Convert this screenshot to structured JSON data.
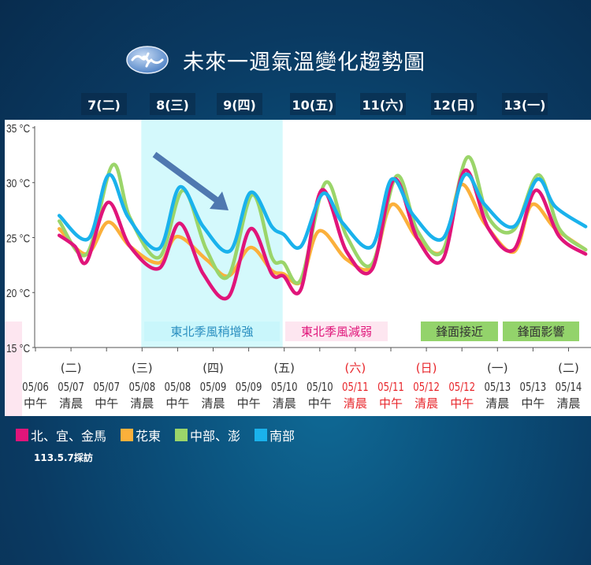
{
  "title": "未來一週氣溫變化趨勢圖",
  "logo_icon": "cwa-logo-icon",
  "days": [
    "7(二)",
    "8(三)",
    "9(四)",
    "10(五)",
    "11(六)",
    "12(日)",
    "13(一)"
  ],
  "annotations": [
    {
      "text": "東北季風稍增強",
      "bg": "#c9f6fb",
      "color": "#2a8fc0"
    },
    {
      "text": "東北季風減弱",
      "bg": "#fde6f0",
      "color": "#e0157a"
    },
    {
      "text": "鋒面接近",
      "bg": "#93d36b",
      "color": "#333333"
    },
    {
      "text": "鋒面影響",
      "bg": "#93d36b",
      "color": "#333333"
    }
  ],
  "legend": [
    {
      "label": "北、宜、金馬",
      "color": "#e0157a"
    },
    {
      "label": "花東",
      "color": "#fbb03b"
    },
    {
      "label": "中部、澎",
      "color": "#9bd56a"
    },
    {
      "label": "南部",
      "color": "#1ab2ec"
    }
  ],
  "note": "113.5.7採訪",
  "chart_data": {
    "type": "line",
    "title": "未來一週氣溫變化趨勢圖",
    "ylim": [
      15,
      35
    ],
    "yticks": [
      "35 °C",
      "30 °C",
      "25 °C",
      "20 °C",
      "15 °C"
    ],
    "ytick_values": [
      35,
      30,
      25,
      20,
      15
    ],
    "categories": [
      {
        "wd": "",
        "date": "05/06",
        "time": "中午",
        "red": false
      },
      {
        "wd": "(二)",
        "date": "05/07",
        "time": "清晨",
        "red": false
      },
      {
        "wd": "",
        "date": "05/07",
        "time": "中午",
        "red": false
      },
      {
        "wd": "(三)",
        "date": "05/08",
        "time": "清晨",
        "red": false
      },
      {
        "wd": "",
        "date": "05/08",
        "time": "中午",
        "red": false
      },
      {
        "wd": "(四)",
        "date": "05/09",
        "time": "清晨",
        "red": false
      },
      {
        "wd": "",
        "date": "05/09",
        "time": "中午",
        "red": false
      },
      {
        "wd": "(五)",
        "date": "05/10",
        "time": "清晨",
        "red": false
      },
      {
        "wd": "",
        "date": "05/10",
        "time": "中午",
        "red": false
      },
      {
        "wd": "(六)",
        "date": "05/11",
        "time": "清晨",
        "red": true
      },
      {
        "wd": "",
        "date": "05/11",
        "time": "中午",
        "red": true
      },
      {
        "wd": "(日)",
        "date": "05/12",
        "time": "清晨",
        "red": true
      },
      {
        "wd": "",
        "date": "05/12",
        "time": "中午",
        "red": true
      },
      {
        "wd": "(一)",
        "date": "05/13",
        "time": "清晨",
        "red": false
      },
      {
        "wd": "",
        "date": "05/13",
        "time": "中午",
        "red": false
      },
      {
        "wd": "(二)",
        "date": "05/14",
        "time": "清晨",
        "red": false
      }
    ],
    "highlight_band": {
      "from_category": 3,
      "to_category": 7,
      "color": "#d4f9fc"
    },
    "arrow_color": "#4f78b0",
    "series": [
      {
        "name": "北、宜、金馬",
        "color": "#e0157a",
        "points": [
          [
            0.67,
            25.2
          ],
          [
            1.11,
            24.2
          ],
          [
            1.44,
            22.8
          ],
          [
            2.04,
            28.2
          ],
          [
            2.66,
            24.2
          ],
          [
            3.48,
            22.2
          ],
          [
            4.06,
            26.3
          ],
          [
            4.72,
            21.7
          ],
          [
            5.43,
            19.6
          ],
          [
            6.05,
            25.8
          ],
          [
            6.65,
            21.7
          ],
          [
            6.98,
            21.5
          ],
          [
            7.47,
            20.3
          ],
          [
            8.05,
            29.3
          ],
          [
            8.76,
            23.7
          ],
          [
            9.47,
            22.1
          ],
          [
            10.09,
            30.3
          ],
          [
            10.75,
            24.9
          ],
          [
            11.46,
            23.0
          ],
          [
            12.08,
            31.1
          ],
          [
            12.75,
            25.8
          ],
          [
            13.46,
            23.9
          ],
          [
            14.08,
            29.3
          ],
          [
            14.74,
            25.1
          ],
          [
            15.48,
            23.5
          ]
        ]
      },
      {
        "name": "花東",
        "color": "#fbb03b",
        "points": [
          [
            0.67,
            25.8
          ],
          [
            1.44,
            23.5
          ],
          [
            2.04,
            26.4
          ],
          [
            2.66,
            24.2
          ],
          [
            3.48,
            22.7
          ],
          [
            3.99,
            25.1
          ],
          [
            4.81,
            23.0
          ],
          [
            5.43,
            21.5
          ],
          [
            6.05,
            24.1
          ],
          [
            6.65,
            22.0
          ],
          [
            6.98,
            21.7
          ],
          [
            7.47,
            21.0
          ],
          [
            7.98,
            25.6
          ],
          [
            8.76,
            23.0
          ],
          [
            9.47,
            22.4
          ],
          [
            10.02,
            28.0
          ],
          [
            10.75,
            24.9
          ],
          [
            11.46,
            23.8
          ],
          [
            11.97,
            29.8
          ],
          [
            12.64,
            26.3
          ],
          [
            13.46,
            23.7
          ],
          [
            13.97,
            28.0
          ],
          [
            14.63,
            25.8
          ],
          [
            15.48,
            23.9
          ]
        ]
      },
      {
        "name": "中部、澎",
        "color": "#9bd56a",
        "points": [
          [
            0.67,
            26.5
          ],
          [
            1.44,
            23.5
          ],
          [
            2.17,
            31.6
          ],
          [
            2.66,
            26.8
          ],
          [
            3.48,
            23.2
          ],
          [
            4.15,
            29.3
          ],
          [
            4.81,
            23.9
          ],
          [
            5.43,
            21.5
          ],
          [
            6.1,
            28.9
          ],
          [
            6.65,
            23.2
          ],
          [
            6.98,
            22.7
          ],
          [
            7.47,
            21.2
          ],
          [
            8.16,
            30.0
          ],
          [
            8.76,
            25.1
          ],
          [
            9.47,
            22.6
          ],
          [
            10.16,
            30.6
          ],
          [
            10.75,
            25.6
          ],
          [
            11.46,
            23.8
          ],
          [
            12.15,
            32.3
          ],
          [
            12.75,
            26.8
          ],
          [
            13.46,
            25.7
          ],
          [
            14.15,
            30.7
          ],
          [
            14.74,
            25.8
          ],
          [
            15.48,
            23.9
          ]
        ]
      },
      {
        "name": "南部",
        "color": "#1ab2ec",
        "points": [
          [
            0.67,
            27.0
          ],
          [
            1.49,
            24.9
          ],
          [
            2.06,
            30.7
          ],
          [
            2.62,
            26.8
          ],
          [
            3.48,
            24.0
          ],
          [
            4.06,
            29.6
          ],
          [
            4.72,
            26.0
          ],
          [
            5.48,
            23.8
          ],
          [
            6.05,
            29.1
          ],
          [
            6.65,
            26.0
          ],
          [
            6.98,
            25.3
          ],
          [
            7.47,
            24.2
          ],
          [
            8.09,
            29.0
          ],
          [
            8.65,
            26.3
          ],
          [
            9.47,
            24.2
          ],
          [
            10.02,
            30.3
          ],
          [
            10.64,
            27.0
          ],
          [
            11.46,
            24.9
          ],
          [
            12.08,
            30.7
          ],
          [
            12.64,
            28.0
          ],
          [
            13.46,
            26.0
          ],
          [
            14.12,
            30.3
          ],
          [
            14.63,
            27.8
          ],
          [
            15.48,
            26.0
          ]
        ]
      }
    ]
  }
}
